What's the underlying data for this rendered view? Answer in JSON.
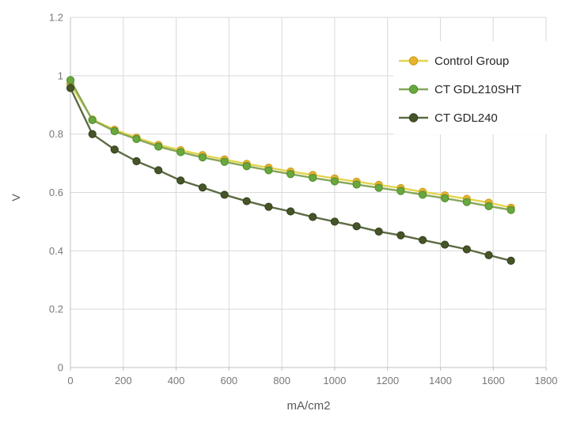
{
  "chart_data": {
    "type": "line",
    "title": "",
    "xlabel": "mA/cm2",
    "ylabel": "V",
    "xlim": [
      0,
      1800
    ],
    "ylim": [
      0,
      1.2
    ],
    "grid": true,
    "legend_position": "top-right",
    "x_ticks": {
      "values": [
        0,
        200,
        400,
        600,
        800,
        1000,
        1200,
        1400,
        1600,
        1800
      ],
      "labels": [
        "0",
        "200",
        "400",
        "600",
        "800",
        "1000",
        "1200",
        "1400",
        "1600",
        "1800"
      ]
    },
    "y_ticks": {
      "values": [
        0,
        0.2,
        0.4,
        0.6,
        0.8,
        1.0,
        1.2
      ],
      "labels": [
        "0",
        "0.2",
        "0.4",
        "0.6",
        "0.8",
        "1",
        "1.2"
      ]
    },
    "x": [
      0,
      83,
      167,
      250,
      333,
      417,
      500,
      583,
      667,
      750,
      833,
      917,
      1000,
      1083,
      1167,
      1250,
      1333,
      1417,
      1500,
      1583,
      1667
    ],
    "series": [
      {
        "name": "Control Group",
        "line_color": "#E3D54D",
        "marker_color": "#E7B32F",
        "marker_edge": "#C79A20",
        "values": [
          0.972,
          0.85,
          0.815,
          0.788,
          0.763,
          0.745,
          0.728,
          0.713,
          0.698,
          0.685,
          0.672,
          0.66,
          0.648,
          0.637,
          0.626,
          0.615,
          0.602,
          0.59,
          0.578,
          0.565,
          0.548
        ]
      },
      {
        "name": "CT GDL210SHT",
        "line_color": "#85A75A",
        "marker_color": "#68A83E",
        "marker_edge": "#4E8A2C",
        "values": [
          0.985,
          0.848,
          0.81,
          0.783,
          0.757,
          0.738,
          0.72,
          0.705,
          0.69,
          0.676,
          0.663,
          0.65,
          0.638,
          0.627,
          0.616,
          0.605,
          0.592,
          0.58,
          0.567,
          0.553,
          0.54
        ]
      },
      {
        "name": "CT GDL240",
        "line_color": "#5C6B42",
        "marker_color": "#465528",
        "marker_edge": "#333F1D",
        "values": [
          0.958,
          0.8,
          0.747,
          0.707,
          0.676,
          0.641,
          0.617,
          0.592,
          0.57,
          0.551,
          0.535,
          0.516,
          0.5,
          0.484,
          0.466,
          0.453,
          0.437,
          0.421,
          0.405,
          0.385,
          0.366
        ]
      }
    ]
  },
  "colors": {
    "background": "#FFFFFF",
    "gridline": "#D9D9D9",
    "axis_line": "#C0C0C0",
    "tick_text": "#787878",
    "axis_title_text": "#595959",
    "legend_text": "#262626",
    "legend_background": "#FFFFFF"
  }
}
